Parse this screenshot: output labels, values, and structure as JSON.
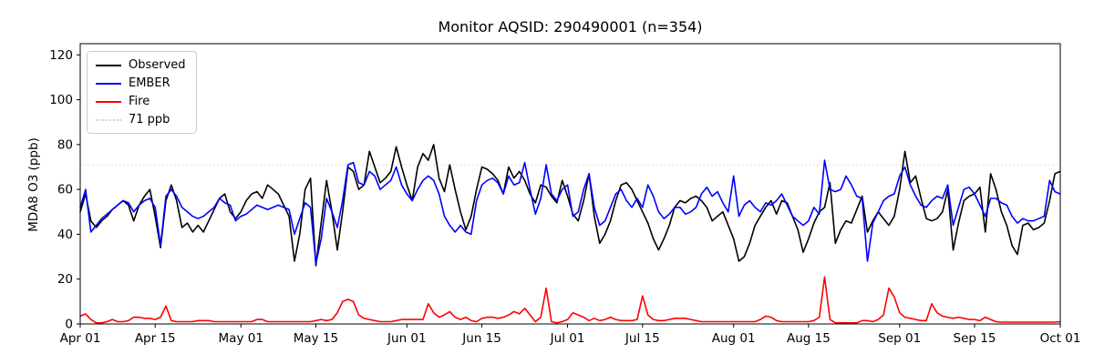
{
  "title": "Monitor AQSID: 290490001 (n=354)",
  "legend": {
    "items": [
      {
        "label": "Observed",
        "color": "#000000",
        "style": "solid"
      },
      {
        "label": "EMBER",
        "color": "#0000ff",
        "style": "solid"
      },
      {
        "label": "Fire",
        "color": "#ff0000",
        "style": "solid"
      },
      {
        "label": "71 ppb",
        "color": "#d3d3d3",
        "style": "dotted"
      }
    ]
  },
  "chart_data": {
    "type": "line",
    "title": "Monitor AQSID: 290490001 (n=354)",
    "xlabel": "",
    "ylabel": "MDA8 O3 (ppb)",
    "x_unit": "daily values, day 0 = Apr 01",
    "grid": false,
    "legend_position": "upper left",
    "ylim": [
      0,
      125
    ],
    "y_ticks": [
      0,
      20,
      40,
      60,
      80,
      100,
      120
    ],
    "x_tick_days": [
      0,
      14,
      30,
      44,
      61,
      75,
      91,
      105,
      122,
      136,
      153,
      167,
      183
    ],
    "x_tick_labels": [
      "Apr 01",
      "Apr 15",
      "May 01",
      "May 15",
      "Jun 01",
      "Jun 15",
      "Jul 01",
      "Jul 15",
      "Aug 01",
      "Aug 15",
      "Sep 01",
      "Sep 15",
      "Oct 01"
    ],
    "threshold": {
      "label": "71 ppb",
      "value": 71,
      "color": "#d3d3d3",
      "style": "dotted"
    },
    "series": [
      {
        "name": "Observed",
        "color": "#000000",
        "values": [
          50,
          58,
          46,
          43,
          46,
          48,
          51,
          53,
          55,
          53,
          46,
          53,
          57,
          60,
          48,
          34,
          55,
          62,
          55,
          43,
          45,
          41,
          44,
          41,
          46,
          51,
          56,
          58,
          50,
          47,
          50,
          55,
          58,
          59,
          56,
          62,
          60,
          58,
          53,
          48,
          28,
          40,
          60,
          65,
          26,
          45,
          64,
          50,
          33,
          50,
          70,
          68,
          60,
          62,
          77,
          70,
          63,
          65,
          68,
          79,
          70,
          62,
          55,
          70,
          76,
          73,
          80,
          65,
          59,
          71,
          60,
          50,
          42,
          48,
          60,
          70,
          69,
          67,
          64,
          58,
          70,
          65,
          68,
          64,
          58,
          54,
          62,
          61,
          57,
          54,
          64,
          57,
          49,
          46,
          55,
          67,
          48,
          36,
          40,
          46,
          55,
          62,
          63,
          60,
          55,
          50,
          45,
          38,
          33,
          38,
          44,
          52,
          55,
          54,
          56,
          57,
          55,
          52,
          46,
          48,
          50,
          44,
          38,
          28,
          30,
          36,
          44,
          48,
          52,
          55,
          49,
          55,
          54,
          48,
          42,
          32,
          38,
          45,
          50,
          52,
          63,
          36,
          42,
          46,
          45,
          51,
          57,
          41,
          46,
          50,
          47,
          44,
          48,
          60,
          77,
          63,
          66,
          56,
          47,
          46,
          47,
          50,
          60,
          33,
          45,
          55,
          57,
          58,
          61,
          41,
          67,
          60,
          50,
          44,
          35,
          31,
          44,
          45,
          42,
          43,
          45,
          55,
          67,
          68
        ]
      },
      {
        "name": "EMBER",
        "color": "#0000ff",
        "values": [
          52,
          60,
          41,
          44,
          47,
          49,
          51,
          53,
          55,
          54,
          50,
          53,
          55,
          56,
          52,
          35,
          57,
          60,
          57,
          52,
          50,
          48,
          47,
          48,
          50,
          52,
          56,
          54,
          53,
          46,
          48,
          49,
          51,
          53,
          52,
          51,
          52,
          53,
          52,
          51,
          40,
          47,
          54,
          52,
          27,
          38,
          56,
          50,
          43,
          55,
          71,
          72,
          63,
          62,
          68,
          66,
          60,
          62,
          64,
          70,
          62,
          58,
          55,
          60,
          64,
          66,
          64,
          58,
          48,
          44,
          41,
          44,
          41,
          40,
          55,
          62,
          64,
          65,
          63,
          58,
          66,
          62,
          63,
          72,
          60,
          49,
          56,
          71,
          58,
          55,
          60,
          62,
          48,
          50,
          60,
          67,
          52,
          44,
          46,
          52,
          58,
          60,
          55,
          52,
          56,
          52,
          62,
          57,
          50,
          47,
          49,
          52,
          52,
          49,
          50,
          52,
          58,
          61,
          57,
          59,
          54,
          50,
          66,
          48,
          53,
          55,
          52,
          50,
          54,
          53,
          55,
          58,
          53,
          48,
          46,
          44,
          46,
          52,
          49,
          73,
          60,
          59,
          60,
          66,
          62,
          57,
          56,
          28,
          45,
          50,
          55,
          57,
          58,
          66,
          70,
          62,
          57,
          53,
          52,
          55,
          57,
          56,
          62,
          44,
          52,
          60,
          61,
          58,
          53,
          48,
          56,
          56,
          54,
          53,
          48,
          45,
          47,
          46,
          46,
          47,
          48,
          64,
          59,
          58
        ]
      },
      {
        "name": "Fire",
        "color": "#ff0000",
        "values": [
          3.5,
          4.5,
          2,
          0.5,
          0.5,
          1,
          2,
          1,
          1,
          1.5,
          3,
          3,
          2.5,
          2.5,
          2,
          3,
          8,
          1.5,
          1,
          1,
          1,
          1,
          1.5,
          1.5,
          1.5,
          1,
          1,
          1,
          1,
          1,
          1,
          1,
          1,
          2,
          2,
          1,
          1,
          1,
          1,
          1,
          1,
          1,
          1,
          1,
          1.5,
          2,
          1.5,
          2,
          5,
          10,
          11,
          10,
          4,
          2.5,
          2,
          1.5,
          1,
          1,
          1,
          1.5,
          2,
          2,
          2,
          2,
          2,
          9,
          5,
          3,
          4,
          5.5,
          3,
          2,
          3,
          1.5,
          1,
          2.5,
          3,
          3,
          2.5,
          3,
          4,
          5.5,
          4.5,
          7,
          4,
          1,
          3,
          16,
          1,
          0.5,
          1,
          2,
          5,
          4,
          3,
          1.5,
          2.5,
          1.5,
          2,
          3,
          2,
          1.5,
          1.5,
          1.5,
          2,
          12.5,
          4,
          2,
          1.5,
          1.5,
          2,
          2.5,
          2.5,
          2.5,
          2,
          1.5,
          1,
          1,
          1,
          1,
          1,
          1,
          1,
          1,
          1,
          1,
          1,
          2,
          3.5,
          3,
          1.5,
          1,
          1,
          1,
          1,
          1,
          1,
          1.5,
          3,
          21,
          2,
          0.5,
          0.5,
          0.5,
          0.5,
          0.5,
          1.5,
          1.5,
          1,
          2,
          4,
          16,
          12,
          5,
          3,
          2.5,
          2,
          1.5,
          1.5,
          9,
          5,
          3.5,
          3,
          2.5,
          3,
          2.5,
          2,
          2,
          1.5,
          3,
          2,
          1,
          0.8,
          0.8,
          0.8,
          0.8,
          0.8,
          0.8,
          0.8,
          0.8,
          0.8,
          0.8,
          0.8,
          1
        ]
      }
    ]
  }
}
